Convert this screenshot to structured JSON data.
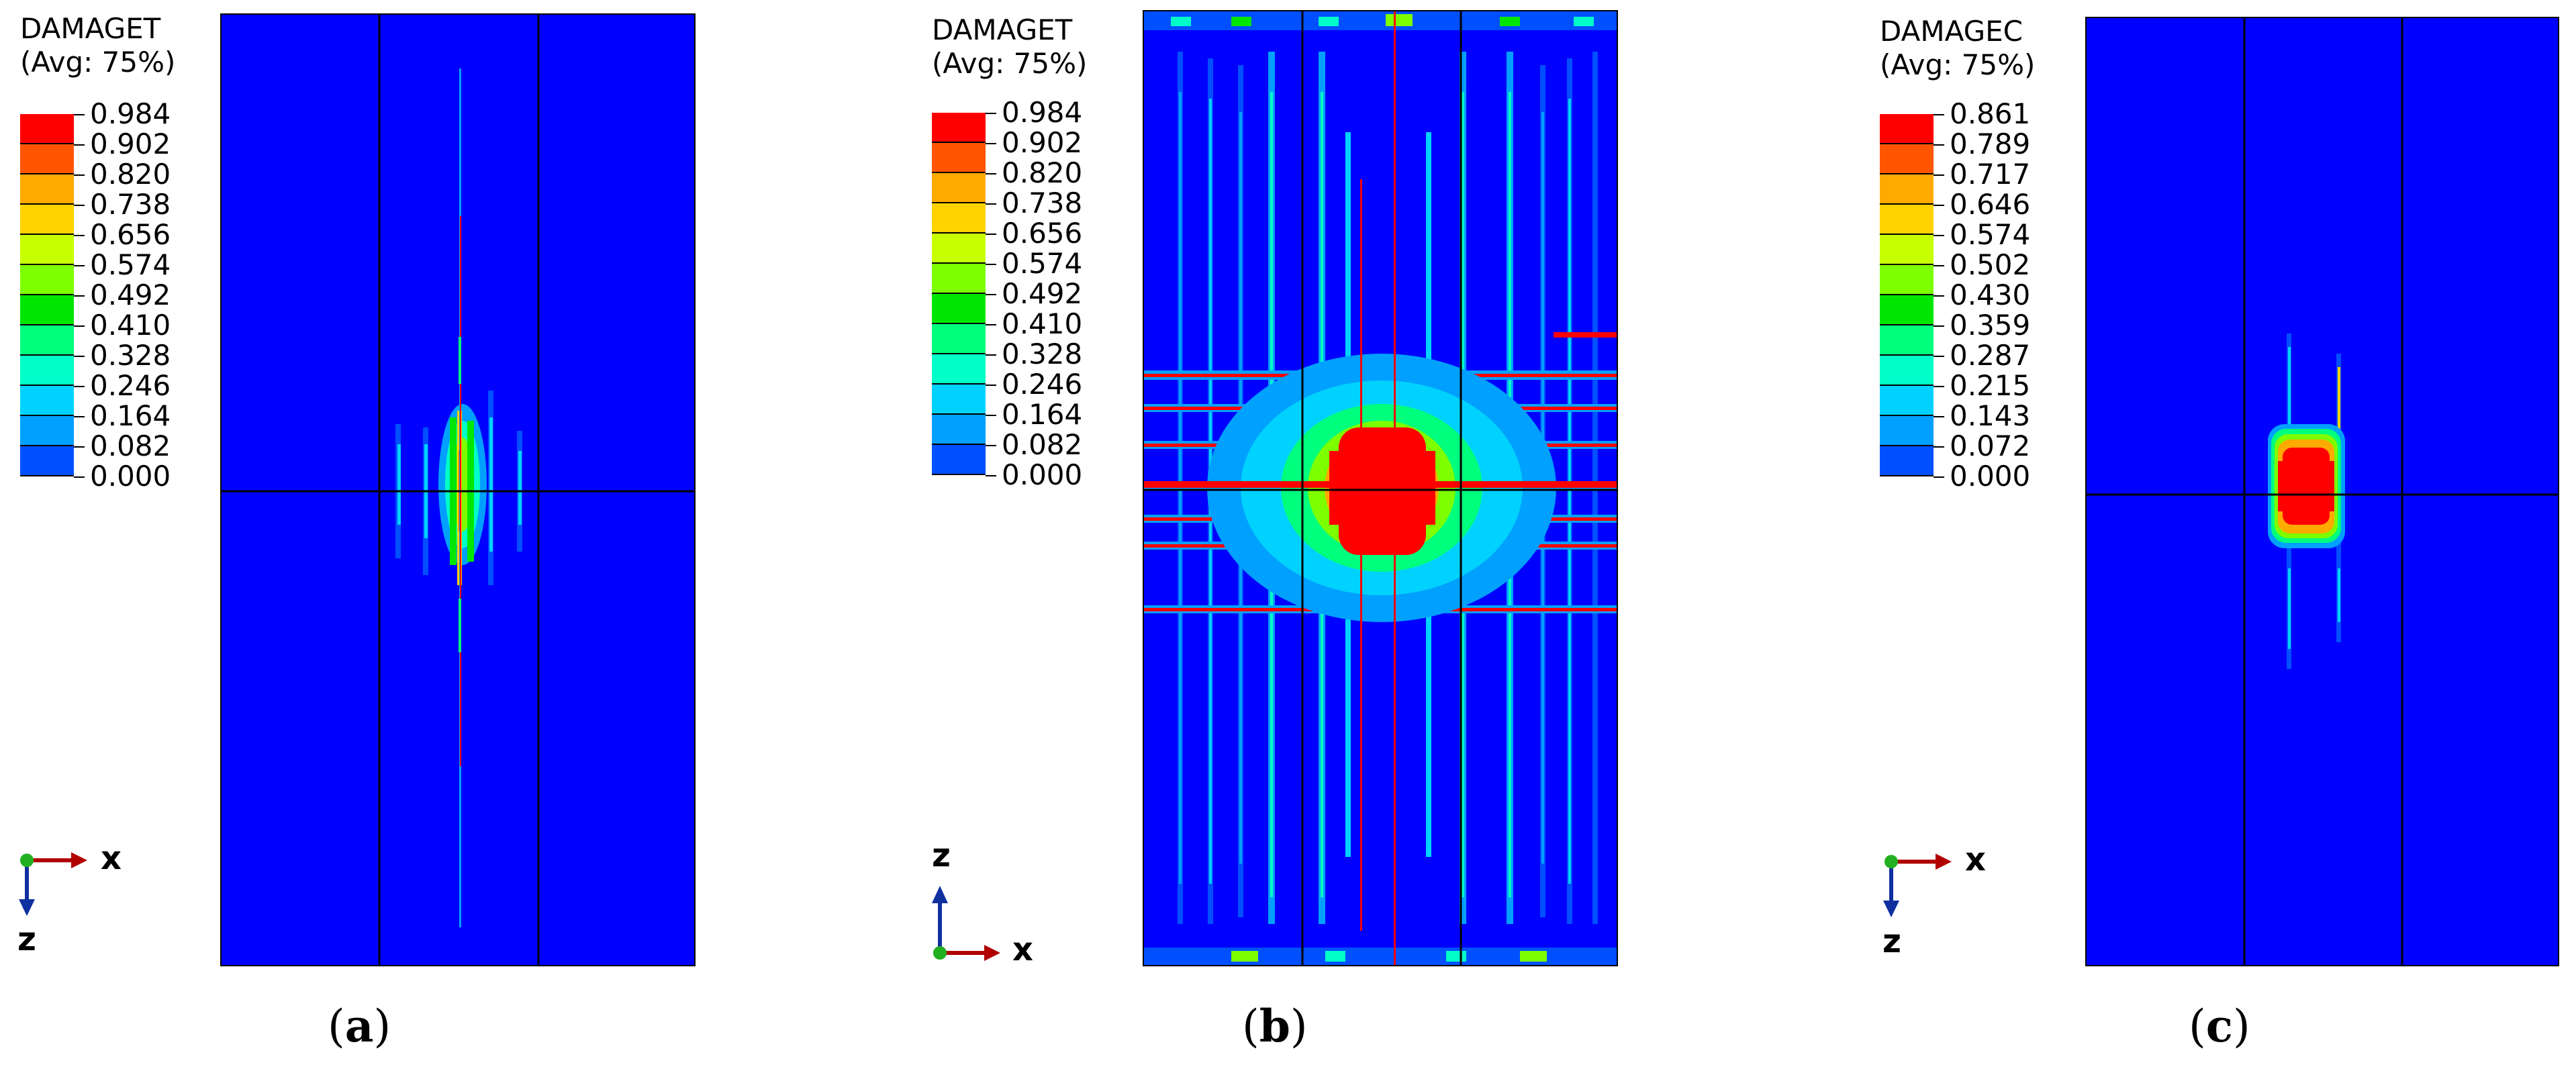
{
  "legend_colors": [
    "#ff0000",
    "#ff5500",
    "#ffaa00",
    "#ffd200",
    "#c8ff00",
    "#7dff00",
    "#00e600",
    "#00ff7d",
    "#00ffc8",
    "#00d2ff",
    "#00a0ff",
    "#0050ff",
    "#0000ff"
  ],
  "panels": [
    {
      "id": "a",
      "legend_title_1": "DAMAGET",
      "legend_title_2": "(Avg: 75%)",
      "legend_values": [
        "0.984",
        "0.902",
        "0.820",
        "0.738",
        "0.656",
        "0.574",
        "0.492",
        "0.410",
        "0.328",
        "0.246",
        "0.164",
        "0.082",
        "0.000"
      ],
      "axis_horizontal": "x",
      "axis_vertical": "z",
      "caption_open": "(",
      "caption_letter": "a",
      "caption_close": ")"
    },
    {
      "id": "b",
      "legend_title_1": "DAMAGET",
      "legend_title_2": "(Avg: 75%)",
      "legend_values": [
        "0.984",
        "0.902",
        "0.820",
        "0.738",
        "0.656",
        "0.574",
        "0.492",
        "0.410",
        "0.328",
        "0.246",
        "0.164",
        "0.082",
        "0.000"
      ],
      "axis_horizontal": "x",
      "axis_vertical": "z",
      "caption_open": "(",
      "caption_letter": "b",
      "caption_close": ")"
    },
    {
      "id": "c",
      "legend_title_1": "DAMAGEC",
      "legend_title_2": "(Avg: 75%)",
      "legend_values": [
        "0.861",
        "0.789",
        "0.717",
        "0.646",
        "0.574",
        "0.502",
        "0.430",
        "0.359",
        "0.287",
        "0.215",
        "0.143",
        "0.072",
        "0.000"
      ],
      "axis_horizontal": "x",
      "axis_vertical": "z",
      "caption_open": "(",
      "caption_letter": "c",
      "caption_close": ")"
    }
  ]
}
